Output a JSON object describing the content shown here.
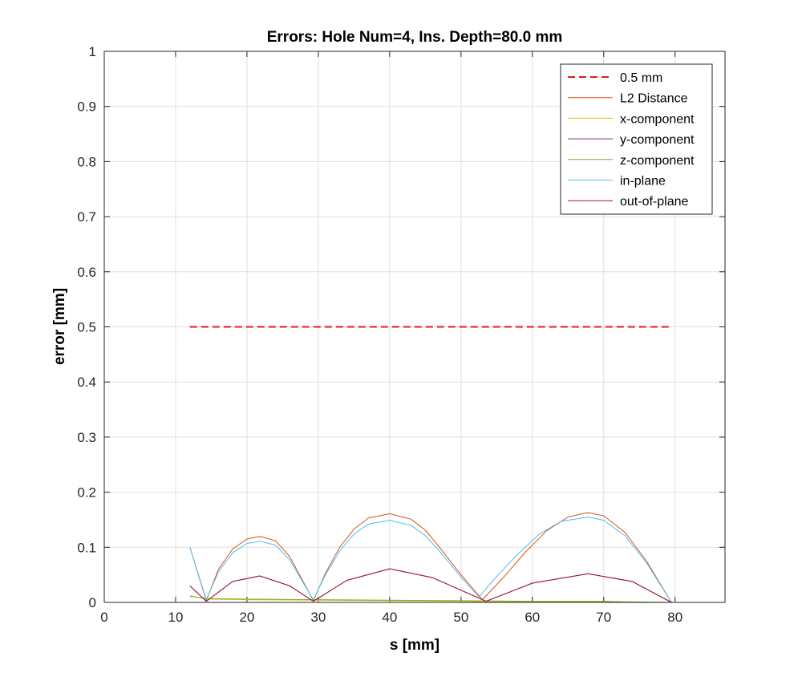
{
  "chart_data": {
    "type": "line",
    "title": "Errors: Hole Num=4, Ins. Depth=80.0 mm",
    "xlabel": "s [mm]",
    "ylabel": "error [mm]",
    "xlim": [
      0,
      87
    ],
    "ylim": [
      0,
      1
    ],
    "xticks": [
      0,
      10,
      20,
      30,
      40,
      50,
      60,
      70,
      80
    ],
    "yticks": [
      0,
      0.1,
      0.2,
      0.3,
      0.4,
      0.5,
      0.6,
      0.7,
      0.8,
      0.9,
      1
    ],
    "ytick_labels": [
      "0",
      "0.1",
      "0.2",
      "0.3",
      "0.4",
      "0.5",
      "0.6",
      "0.7",
      "0.8",
      "0.9",
      "1"
    ],
    "grid": true,
    "legend_position": "top-right",
    "series": [
      {
        "name": "0.5 mm",
        "color": "#e41a1c",
        "dashed": true,
        "width": 2,
        "x": [
          12,
          79.5
        ],
        "y": [
          0.5,
          0.5
        ]
      },
      {
        "name": "L2 Distance",
        "color": "#d95319",
        "width": 1,
        "x": [
          12,
          14.3,
          16,
          18,
          20,
          21.8,
          24,
          26,
          28,
          29.3,
          31,
          33,
          35,
          37,
          40,
          43,
          45,
          47,
          50,
          53,
          56,
          59,
          62,
          65,
          67.8,
          70,
          73,
          76,
          79.5
        ],
        "y": [
          0.1,
          0.003,
          0.06,
          0.097,
          0.115,
          0.12,
          0.112,
          0.083,
          0.035,
          0.003,
          0.053,
          0.1,
          0.133,
          0.153,
          0.161,
          0.151,
          0.131,
          0.1,
          0.05,
          0.005,
          0.046,
          0.091,
          0.13,
          0.155,
          0.163,
          0.157,
          0.127,
          0.075,
          0.0
        ]
      },
      {
        "name": "x-component",
        "color": "#edb120",
        "width": 1,
        "x": [
          12,
          14.3,
          20,
          30,
          40,
          50,
          53.5,
          60,
          70,
          79.5
        ],
        "y": [
          0.012,
          0.006,
          0.005,
          0.004,
          0.003,
          0.002,
          0.001,
          0.001,
          0.001,
          0.0
        ]
      },
      {
        "name": "y-component",
        "color": "#7e2f8e",
        "width": 1,
        "x": [
          12,
          14.3,
          18,
          21.8,
          26,
          29.3,
          34,
          40,
          46,
          53.5,
          60,
          67.8,
          74,
          79.5
        ],
        "y": [
          0.03,
          0.002,
          0.038,
          0.048,
          0.03,
          0.002,
          0.04,
          0.061,
          0.045,
          0.002,
          0.035,
          0.052,
          0.038,
          0.0
        ]
      },
      {
        "name": "z-component",
        "color": "#77ac30",
        "width": 1,
        "x": [
          12,
          14.3,
          20,
          30,
          40,
          50,
          60,
          70,
          73,
          79.5
        ],
        "y": [
          0.011,
          0.007,
          0.006,
          0.005,
          0.004,
          0.003,
          0.002,
          0.002,
          0.001,
          0.0
        ]
      },
      {
        "name": "in-plane",
        "color": "#4dbeee",
        "width": 1,
        "x": [
          12,
          14.3,
          16,
          18,
          20,
          21.8,
          24,
          26,
          28,
          29.3,
          31,
          33,
          35,
          37,
          40,
          43,
          45,
          47,
          50,
          52.5,
          55,
          58,
          61,
          64,
          67.8,
          70,
          73,
          76,
          79.5
        ],
        "y": [
          0.1,
          0.005,
          0.055,
          0.09,
          0.107,
          0.111,
          0.104,
          0.077,
          0.033,
          0.005,
          0.05,
          0.093,
          0.124,
          0.142,
          0.149,
          0.14,
          0.121,
          0.093,
          0.046,
          0.01,
          0.047,
          0.088,
          0.124,
          0.147,
          0.155,
          0.149,
          0.121,
          0.072,
          0.0
        ]
      },
      {
        "name": "out-of-plane",
        "color": "#a2142f",
        "width": 1,
        "x": [
          12,
          14.3,
          18,
          21.8,
          26,
          29.3,
          34,
          40,
          46,
          53.5,
          60,
          67.8,
          74,
          79.5
        ],
        "y": [
          0.03,
          0.002,
          0.038,
          0.048,
          0.03,
          0.002,
          0.04,
          0.061,
          0.045,
          0.002,
          0.035,
          0.052,
          0.038,
          0.0
        ]
      }
    ]
  }
}
